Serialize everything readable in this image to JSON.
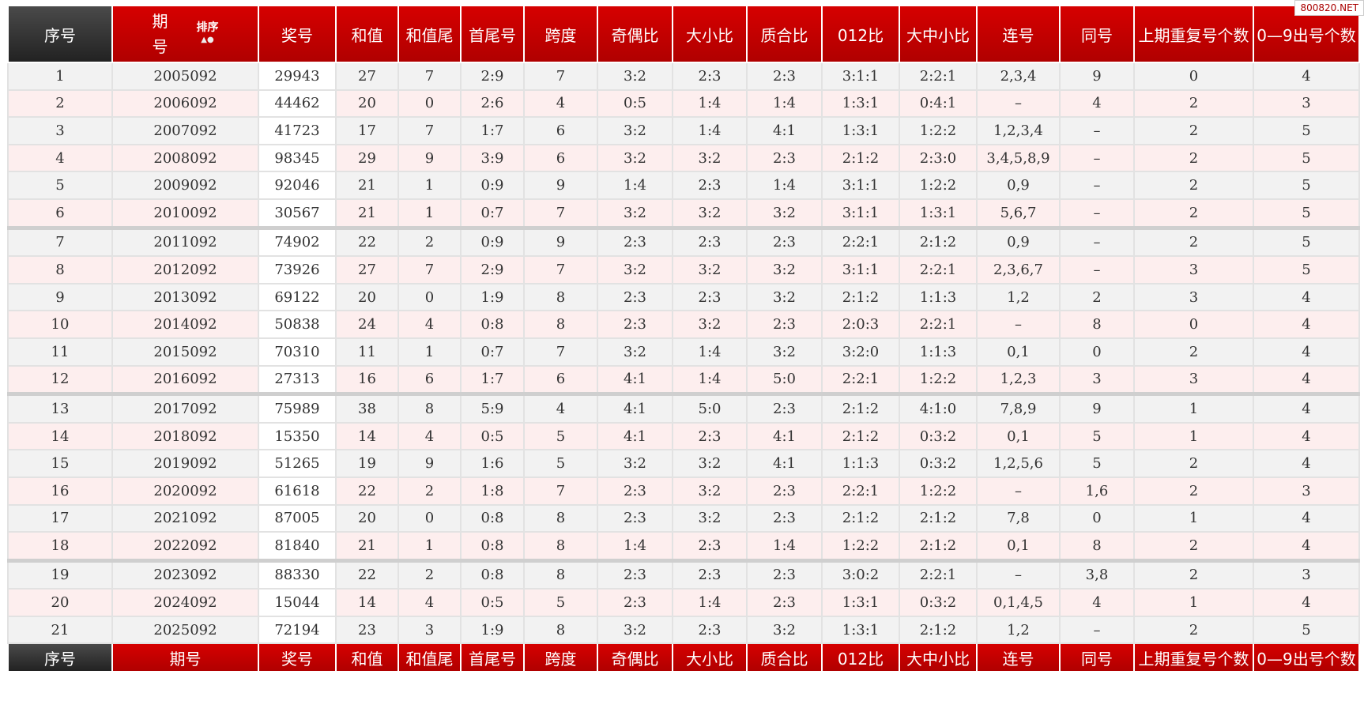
{
  "watermark": "800820.NET",
  "header": {
    "columns": [
      "序号",
      "期号",
      "奖号",
      "和值",
      "和值尾",
      "首尾号",
      "跨度",
      "奇偶比",
      "大小比",
      "质合比",
      "012比",
      "大中小比",
      "连号",
      "同号",
      "上期重复号个数",
      "0—9出号个数"
    ],
    "sort_label": "排序"
  },
  "table": {
    "rows": [
      [
        "1",
        "2005092",
        "29943",
        "27",
        "7",
        "2:9",
        "7",
        "3:2",
        "2:3",
        "2:3",
        "3:1:1",
        "2:2:1",
        "2,3,4",
        "9",
        "0",
        "4"
      ],
      [
        "2",
        "2006092",
        "44462",
        "20",
        "0",
        "2:6",
        "4",
        "0:5",
        "1:4",
        "1:4",
        "1:3:1",
        "0:4:1",
        "–",
        "4",
        "2",
        "3"
      ],
      [
        "3",
        "2007092",
        "41723",
        "17",
        "7",
        "1:7",
        "6",
        "3:2",
        "1:4",
        "4:1",
        "1:3:1",
        "1:2:2",
        "1,2,3,4",
        "–",
        "2",
        "5"
      ],
      [
        "4",
        "2008092",
        "98345",
        "29",
        "9",
        "3:9",
        "6",
        "3:2",
        "3:2",
        "2:3",
        "2:1:2",
        "2:3:0",
        "3,4,5,8,9",
        "–",
        "2",
        "5"
      ],
      [
        "5",
        "2009092",
        "92046",
        "21",
        "1",
        "0:9",
        "9",
        "1:4",
        "2:3",
        "1:4",
        "3:1:1",
        "1:2:2",
        "0,9",
        "–",
        "2",
        "5"
      ],
      [
        "6",
        "2010092",
        "30567",
        "21",
        "1",
        "0:7",
        "7",
        "3:2",
        "3:2",
        "3:2",
        "3:1:1",
        "1:3:1",
        "5,6,7",
        "–",
        "2",
        "5"
      ],
      [
        "7",
        "2011092",
        "74902",
        "22",
        "2",
        "0:9",
        "9",
        "2:3",
        "2:3",
        "2:3",
        "2:2:1",
        "2:1:2",
        "0,9",
        "–",
        "2",
        "5"
      ],
      [
        "8",
        "2012092",
        "73926",
        "27",
        "7",
        "2:9",
        "7",
        "3:2",
        "3:2",
        "3:2",
        "3:1:1",
        "2:2:1",
        "2,3,6,7",
        "–",
        "3",
        "5"
      ],
      [
        "9",
        "2013092",
        "69122",
        "20",
        "0",
        "1:9",
        "8",
        "2:3",
        "2:3",
        "3:2",
        "2:1:2",
        "1:1:3",
        "1,2",
        "2",
        "3",
        "4"
      ],
      [
        "10",
        "2014092",
        "50838",
        "24",
        "4",
        "0:8",
        "8",
        "2:3",
        "3:2",
        "2:3",
        "2:0:3",
        "2:2:1",
        "–",
        "8",
        "0",
        "4"
      ],
      [
        "11",
        "2015092",
        "70310",
        "11",
        "1",
        "0:7",
        "7",
        "3:2",
        "1:4",
        "3:2",
        "3:2:0",
        "1:1:3",
        "0,1",
        "0",
        "2",
        "4"
      ],
      [
        "12",
        "2016092",
        "27313",
        "16",
        "6",
        "1:7",
        "6",
        "4:1",
        "1:4",
        "5:0",
        "2:2:1",
        "1:2:2",
        "1,2,3",
        "3",
        "3",
        "4"
      ],
      [
        "13",
        "2017092",
        "75989",
        "38",
        "8",
        "5:9",
        "4",
        "4:1",
        "5:0",
        "2:3",
        "2:1:2",
        "4:1:0",
        "7,8,9",
        "9",
        "1",
        "4"
      ],
      [
        "14",
        "2018092",
        "15350",
        "14",
        "4",
        "0:5",
        "5",
        "4:1",
        "2:3",
        "4:1",
        "2:1:2",
        "0:3:2",
        "0,1",
        "5",
        "1",
        "4"
      ],
      [
        "15",
        "2019092",
        "51265",
        "19",
        "9",
        "1:6",
        "5",
        "3:2",
        "3:2",
        "4:1",
        "1:1:3",
        "0:3:2",
        "1,2,5,6",
        "5",
        "2",
        "4"
      ],
      [
        "16",
        "2020092",
        "61618",
        "22",
        "2",
        "1:8",
        "7",
        "2:3",
        "3:2",
        "2:3",
        "2:2:1",
        "1:2:2",
        "–",
        "1,6",
        "2",
        "3"
      ],
      [
        "17",
        "2021092",
        "87005",
        "20",
        "0",
        "0:8",
        "8",
        "2:3",
        "3:2",
        "2:3",
        "2:1:2",
        "2:1:2",
        "7,8",
        "0",
        "1",
        "4"
      ],
      [
        "18",
        "2022092",
        "81840",
        "21",
        "1",
        "0:8",
        "8",
        "1:4",
        "2:3",
        "1:4",
        "1:2:2",
        "2:1:2",
        "0,1",
        "8",
        "2",
        "4"
      ],
      [
        "19",
        "2023092",
        "88330",
        "22",
        "2",
        "0:8",
        "8",
        "2:3",
        "2:3",
        "2:3",
        "3:0:2",
        "2:2:1",
        "–",
        "3,8",
        "2",
        "3"
      ],
      [
        "20",
        "2024092",
        "15044",
        "14",
        "4",
        "0:5",
        "5",
        "2:3",
        "1:4",
        "2:3",
        "1:3:1",
        "0:3:2",
        "0,1,4,5",
        "4",
        "1",
        "4"
      ],
      [
        "21",
        "2025092",
        "72194",
        "23",
        "3",
        "1:9",
        "8",
        "3:2",
        "2:3",
        "3:2",
        "1:3:1",
        "2:1:2",
        "1,2",
        "–",
        "2",
        "5"
      ]
    ]
  },
  "footer": {
    "columns": [
      "序号",
      "期号",
      "奖号",
      "和值",
      "和值尾",
      "首尾号",
      "跨度",
      "奇偶比",
      "大小比",
      "质合比",
      "012比",
      "大中小比",
      "连号",
      "同号",
      "上期重复号个数",
      "0—9出号个数"
    ]
  }
}
